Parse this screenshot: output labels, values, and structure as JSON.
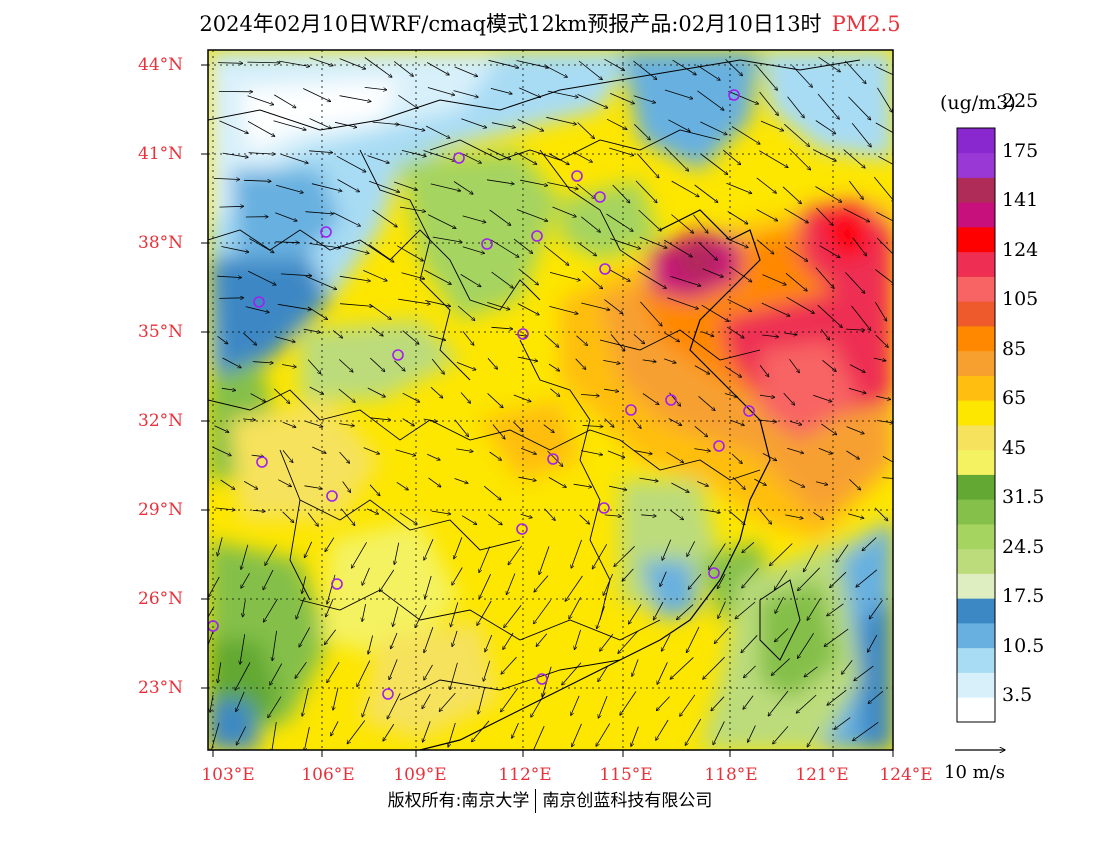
{
  "title": {
    "main": "2024年02月10日WRF/cmaq模式12km预报产品:02月10日13时",
    "pollutant": "PM2.5"
  },
  "latitudes": [
    "44°N",
    "41°N",
    "38°N",
    "35°N",
    "32°N",
    "29°N",
    "26°N",
    "23°N"
  ],
  "longitudes": [
    "103°E",
    "106°E",
    "109°E",
    "112°E",
    "115°E",
    "118°E",
    "121°E",
    "124°E"
  ],
  "legend": {
    "unit": "(ug/m3)",
    "bins": [
      {
        "color": "#ffffff"
      },
      {
        "color": "#d8f0fa"
      },
      {
        "color": "#a8dcf4"
      },
      {
        "color": "#68b0e0"
      },
      {
        "color": "#3c88c4"
      },
      {
        "color": "#dfeec0"
      },
      {
        "color": "#bcdc7c"
      },
      {
        "color": "#a6d460"
      },
      {
        "color": "#84c04a"
      },
      {
        "color": "#62a832"
      },
      {
        "color": "#f4f260"
      },
      {
        "color": "#f6e25c"
      },
      {
        "color": "#fde600"
      },
      {
        "color": "#ffbe10"
      },
      {
        "color": "#f7a030"
      },
      {
        "color": "#ff8800"
      },
      {
        "color": "#ee5a2c"
      },
      {
        "color": "#f86464"
      },
      {
        "color": "#ee2e52"
      },
      {
        "color": "#ff0000"
      },
      {
        "color": "#c8107c"
      },
      {
        "color": "#b02c58"
      },
      {
        "color": "#9a38d6"
      },
      {
        "color": "#8a28d0"
      }
    ],
    "labels": [
      "3.5",
      "10.5",
      "17.5",
      "24.5",
      "31.5",
      "45",
      "65",
      "85",
      "105",
      "124",
      "141",
      "175",
      "225"
    ]
  },
  "wind_scale": {
    "label": "10 m/s"
  },
  "footer": {
    "copyright": "版权所有:南京大学",
    "company": "南京创蓝科技有限公司"
  }
}
